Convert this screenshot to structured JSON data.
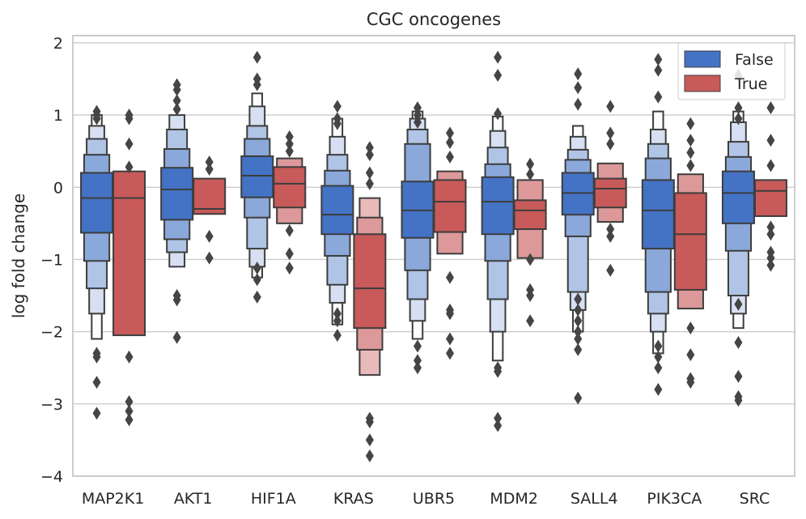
{
  "chart_data": {
    "type": "boxen",
    "title": "CGC oncogenes",
    "xlabel": "",
    "ylabel": "log fold change",
    "ylim": [
      -4,
      2.1
    ],
    "yticks": [
      2,
      1,
      0,
      -1,
      -2,
      -3,
      -4
    ],
    "ytick_labels": [
      "2",
      "1",
      "0",
      "−1",
      "−2",
      "−3",
      "−4"
    ],
    "grid": "horizontal",
    "legend_position": "top-right",
    "categories": [
      "MAP2K1",
      "AKT1",
      "HIF1A",
      "KRAS",
      "UBR5",
      "MDM2",
      "SALL4",
      "PIK3CA",
      "SRC"
    ],
    "series": [
      {
        "name": "False",
        "color": "#4472c4",
        "median": [
          -0.15,
          -0.03,
          0.16,
          -0.38,
          -0.32,
          -0.2,
          -0.08,
          -0.32,
          -0.08
        ],
        "q1": [
          -0.63,
          -0.45,
          -0.14,
          -0.65,
          -0.7,
          -0.65,
          -0.38,
          -0.85,
          -0.5
        ],
        "q3": [
          0.2,
          0.27,
          0.43,
          0.02,
          0.08,
          0.14,
          0.2,
          0.1,
          0.22
        ],
        "levels": [
          [
            [
              -1.02,
              0.45
            ],
            [
              -1.4,
              0.67
            ],
            [
              -1.75,
              0.85
            ],
            [
              -2.1,
              1.0
            ]
          ],
          [
            [
              -0.72,
              0.53
            ],
            [
              -0.9,
              0.8
            ],
            [
              -1.1,
              1.0
            ]
          ],
          [
            [
              -0.42,
              0.67
            ],
            [
              -0.85,
              0.85
            ],
            [
              -1.1,
              1.12
            ],
            [
              -1.25,
              1.3
            ]
          ],
          [
            [
              -0.95,
              0.23
            ],
            [
              -1.35,
              0.45
            ],
            [
              -1.6,
              0.7
            ],
            [
              -1.9,
              0.95
            ]
          ],
          [
            [
              -1.15,
              0.6
            ],
            [
              -1.55,
              0.8
            ],
            [
              -1.85,
              0.95
            ],
            [
              -2.1,
              1.05
            ]
          ],
          [
            [
              -1.02,
              0.32
            ],
            [
              -1.55,
              0.55
            ],
            [
              -2.0,
              0.78
            ],
            [
              -2.4,
              0.98
            ]
          ],
          [
            [
              -0.68,
              0.38
            ],
            [
              -1.45,
              0.52
            ],
            [
              -1.7,
              0.7
            ],
            [
              -2.0,
              0.85
            ]
          ],
          [
            [
              -1.45,
              0.4
            ],
            [
              -1.75,
              0.6
            ],
            [
              -2.0,
              0.8
            ],
            [
              -2.3,
              1.05
            ]
          ],
          [
            [
              -0.88,
              0.42
            ],
            [
              -1.5,
              0.63
            ],
            [
              -1.75,
              0.9
            ],
            [
              -1.95,
              1.05
            ]
          ]
        ],
        "outliers": [
          [
            1.05,
            1.0,
            0.95,
            -2.3,
            -2.35,
            -2.7,
            -3.13
          ],
          [
            1.42,
            1.35,
            1.2,
            1.08,
            -1.5,
            -1.56,
            -2.08
          ],
          [
            1.8,
            1.5,
            1.42,
            -1.12,
            -1.28,
            -1.52
          ],
          [
            1.12,
            0.95,
            0.88,
            -1.75,
            -1.85,
            -2.05
          ],
          [
            1.1,
            1.0,
            0.9,
            -2.2,
            -2.4,
            -2.5
          ],
          [
            1.8,
            1.55,
            1.02,
            -2.5,
            -2.55,
            -3.2,
            -3.3
          ],
          [
            1.57,
            1.38,
            1.15,
            -1.55,
            -1.7,
            -1.85,
            -2.0,
            -2.1,
            -2.25,
            -2.92
          ],
          [
            1.77,
            1.62,
            1.25,
            -2.2,
            -2.35,
            -2.5,
            -2.8
          ],
          [
            1.55,
            1.1,
            0.95,
            -1.62,
            -2.15,
            -2.62,
            -2.9,
            -2.95
          ]
        ]
      },
      {
        "name": "True",
        "color": "#c85a5a",
        "median": [
          -0.15,
          -0.3,
          0.05,
          -1.4,
          -0.2,
          -0.32,
          -0.02,
          -0.65,
          -0.05
        ],
        "q1": [
          -2.05,
          -0.37,
          -0.28,
          -1.95,
          -0.62,
          -0.58,
          -0.28,
          -1.42,
          -0.4
        ],
        "q3": [
          0.22,
          0.12,
          0.28,
          -0.65,
          0.1,
          -0.18,
          0.12,
          -0.08,
          0.1
        ],
        "levels": [
          [],
          [],
          [
            [
              -0.5,
              0.4
            ]
          ],
          [
            [
              -2.25,
              -0.42
            ],
            [
              -2.6,
              -0.15
            ]
          ],
          [
            [
              -0.92,
              0.22
            ]
          ],
          [
            [
              -0.98,
              0.1
            ]
          ],
          [
            [
              -0.48,
              0.33
            ]
          ],
          [
            [
              -1.68,
              0.18
            ]
          ],
          []
        ],
        "outliers": [
          [
            1.0,
            0.95,
            0.6,
            0.28,
            -2.35,
            -2.97,
            -3.1,
            -3.22
          ],
          [
            0.35,
            0.25,
            -0.68,
            -0.98
          ],
          [
            0.7,
            0.6,
            0.5,
            -0.6,
            -0.92,
            -1.12
          ],
          [
            0.55,
            0.45,
            0.2,
            0.05,
            -3.2,
            -3.25,
            -3.5,
            -3.72
          ],
          [
            0.75,
            0.62,
            0.42,
            -1.25,
            -1.7,
            -1.75,
            -2.1,
            -2.3
          ],
          [
            0.32,
            0.18,
            -1.0,
            -1.42,
            -1.5,
            -1.85
          ],
          [
            1.12,
            0.75,
            0.6,
            -0.58,
            -0.68,
            -1.15
          ],
          [
            0.88,
            0.65,
            0.48,
            0.3,
            -1.95,
            -2.32,
            -2.65,
            -2.7
          ],
          [
            1.1,
            0.65,
            0.3,
            -0.55,
            -0.65,
            -0.9,
            -0.98,
            -1.08
          ]
        ]
      }
    ]
  }
}
